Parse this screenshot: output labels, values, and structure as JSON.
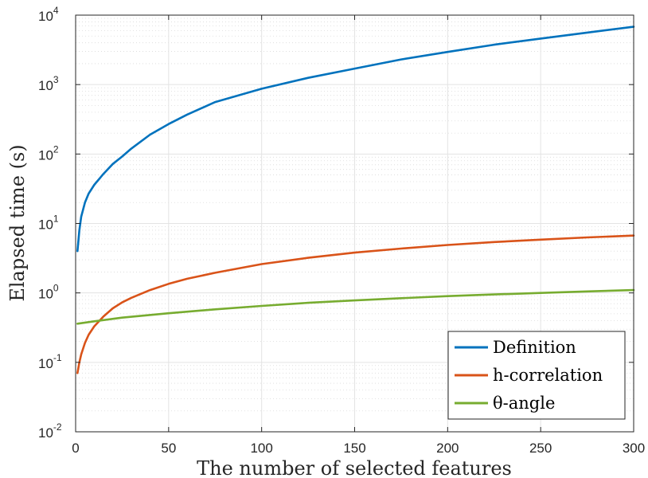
{
  "chart_data": {
    "type": "line",
    "title": "",
    "xlabel": "The number of selected features",
    "ylabel": "Elapsed time (s)",
    "xlim": [
      0,
      300
    ],
    "ylim": [
      0.01,
      10000
    ],
    "yscale": "log",
    "grid": true,
    "minor_grid": true,
    "legend_position": "bottom-right",
    "x_ticks": [
      0,
      50,
      100,
      150,
      200,
      250,
      300
    ],
    "y_ticks": [
      {
        "base": "10",
        "exp": "-2",
        "value": 0.01
      },
      {
        "base": "10",
        "exp": "-1",
        "value": 0.1
      },
      {
        "base": "10",
        "exp": "0",
        "value": 1
      },
      {
        "base": "10",
        "exp": "1",
        "value": 10
      },
      {
        "base": "10",
        "exp": "2",
        "value": 100
      },
      {
        "base": "10",
        "exp": "3",
        "value": 1000
      },
      {
        "base": "10",
        "exp": "4",
        "value": 10000
      }
    ],
    "series": [
      {
        "name": "Definition",
        "color": "#0072BD",
        "x": [
          1,
          2,
          3,
          5,
          7,
          10,
          15,
          20,
          25,
          30,
          40,
          50,
          60,
          75,
          100,
          125,
          150,
          175,
          200,
          225,
          250,
          275,
          300
        ],
        "y": [
          4.0,
          8.0,
          12.5,
          20,
          27,
          36,
          52,
          72,
          92,
          120,
          190,
          270,
          370,
          560,
          870,
          1250,
          1700,
          2300,
          2950,
          3750,
          4600,
          5600,
          6800
        ]
      },
      {
        "name": "h-correlation",
        "color": "#D95319",
        "x": [
          1,
          2,
          3,
          5,
          7,
          10,
          15,
          20,
          25,
          30,
          40,
          50,
          60,
          75,
          100,
          125,
          150,
          175,
          200,
          225,
          250,
          275,
          300
        ],
        "y": [
          0.07,
          0.1,
          0.13,
          0.19,
          0.25,
          0.33,
          0.46,
          0.6,
          0.73,
          0.85,
          1.1,
          1.35,
          1.6,
          1.95,
          2.6,
          3.2,
          3.8,
          4.35,
          4.9,
          5.4,
          5.85,
          6.3,
          6.7
        ]
      },
      {
        "name": "θ-angle",
        "color": "#77AC30",
        "x": [
          1,
          10,
          25,
          50,
          75,
          100,
          125,
          150,
          175,
          200,
          225,
          250,
          275,
          300
        ],
        "y": [
          0.36,
          0.39,
          0.44,
          0.51,
          0.58,
          0.65,
          0.72,
          0.78,
          0.84,
          0.9,
          0.95,
          1.0,
          1.05,
          1.1
        ]
      }
    ]
  }
}
